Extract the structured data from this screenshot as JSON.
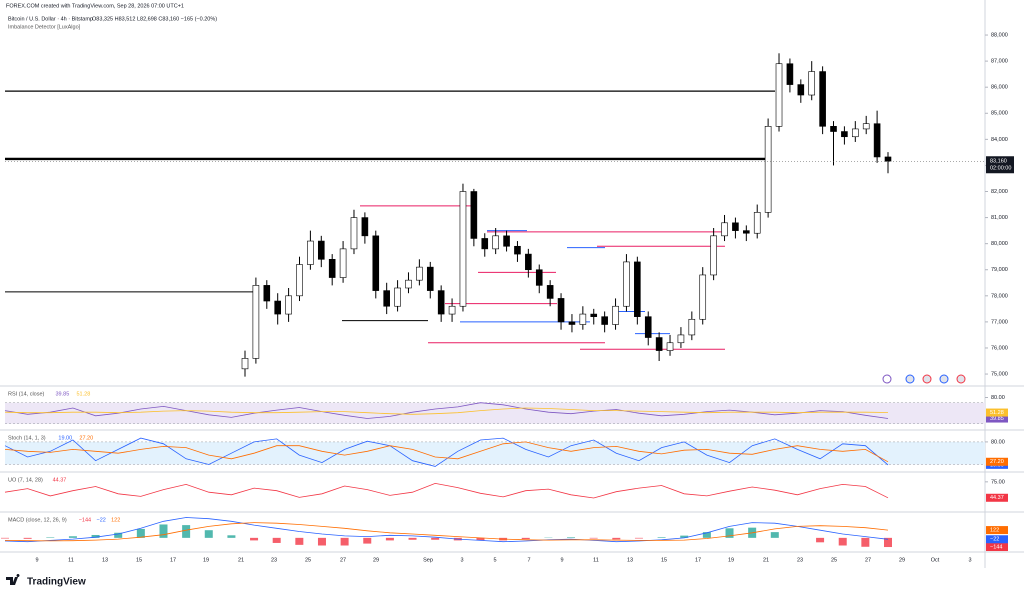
{
  "source": "FOREX.COM created with TradingView.com, Sep 28, 2026 07:00 UTC+1",
  "brand": "TradingView",
  "time_axis": {
    "labels": [
      "9",
      "11",
      "13",
      "15",
      "17",
      "19",
      "21",
      "23",
      "25",
      "27",
      "29",
      "Sep",
      "3",
      "5",
      "7",
      "9",
      "11",
      "13",
      "15",
      "17",
      "19",
      "21",
      "23",
      "25",
      "27",
      "29",
      "Oct",
      "3"
    ]
  },
  "chart_data": [
    {
      "type": "candlestick",
      "title": "Bitcoin / U.S. Dollar · 4h · Bitstamp",
      "ohlc_text": "O83,325 H83,512 L82,698 C83,160 −165 (−0.20%)",
      "subtitle": "Imbalance Detector [LuxAlgo]",
      "up_color": "#ffffff",
      "down_color": "#000000",
      "ylim": [
        74580,
        88270
      ],
      "yticks": [
        {
          "value": 75000,
          "label": "75,000"
        },
        {
          "value": 76000,
          "label": "76,000"
        },
        {
          "value": 77000,
          "label": "77,000"
        },
        {
          "value": 78000,
          "label": "78,000"
        },
        {
          "value": 79000,
          "label": "79,000"
        },
        {
          "value": 80000,
          "label": "80,000"
        },
        {
          "value": 81000,
          "label": "81,000"
        },
        {
          "value": 82000,
          "label": "82,000"
        },
        {
          "value": 83000,
          "label": "83,000"
        },
        {
          "value": 84000,
          "label": "84,000"
        },
        {
          "value": 85000,
          "label": "85,000"
        },
        {
          "value": 86000,
          "label": "86,000"
        },
        {
          "value": 87000,
          "label": "87,000"
        },
        {
          "value": 88000,
          "label": "88,000"
        }
      ],
      "last_price_label": "83,160",
      "countdown": "02:00:00",
      "levels": [
        {
          "value": 85850,
          "color": "#000000"
        },
        {
          "value": 83250,
          "color": "#000000"
        },
        {
          "value": 78150,
          "color": "#000000"
        },
        {
          "value": 77050,
          "color": "#000000"
        },
        {
          "value": 81450,
          "color": "#e91e63"
        },
        {
          "value": 80450,
          "color": "#e91e63"
        },
        {
          "value": 79900,
          "color": "#e91e63"
        },
        {
          "value": 78900,
          "color": "#e91e63"
        },
        {
          "value": 77700,
          "color": "#e91e63"
        },
        {
          "value": 76200,
          "color": "#e91e63"
        },
        {
          "value": 75950,
          "color": "#e91e63"
        },
        {
          "value": 80500,
          "color": "#2962ff"
        },
        {
          "value": 79850,
          "color": "#2962ff"
        },
        {
          "value": 77000,
          "color": "#2962ff"
        },
        {
          "value": 77400,
          "color": "#2962ff"
        },
        {
          "value": 76550,
          "color": "#2962ff"
        }
      ],
      "ohlc": [
        [
          75200,
          75900,
          74900,
          75600
        ],
        [
          75600,
          78700,
          75400,
          78400
        ],
        [
          78400,
          78600,
          77500,
          77800
        ],
        [
          77800,
          78100,
          76900,
          77300
        ],
        [
          77300,
          78300,
          77000,
          78000
        ],
        [
          78000,
          79500,
          77800,
          79200
        ],
        [
          79200,
          80500,
          79000,
          80100
        ],
        [
          80100,
          80300,
          79100,
          79400
        ],
        [
          79400,
          79600,
          78400,
          78700
        ],
        [
          78700,
          80100,
          78500,
          79800
        ],
        [
          79800,
          81300,
          79600,
          81000
        ],
        [
          81000,
          81200,
          80000,
          80300
        ],
        [
          80300,
          80500,
          77900,
          78200
        ],
        [
          78200,
          78500,
          77300,
          77600
        ],
        [
          77600,
          78600,
          77400,
          78300
        ],
        [
          78300,
          78900,
          78100,
          78600
        ],
        [
          78600,
          79400,
          78400,
          79100
        ],
        [
          79100,
          79300,
          77900,
          78200
        ],
        [
          78200,
          78400,
          77000,
          77300
        ],
        [
          77300,
          77900,
          77000,
          77600
        ],
        [
          77600,
          82300,
          77400,
          82000
        ],
        [
          82000,
          82100,
          79900,
          80200
        ],
        [
          80200,
          80400,
          79500,
          79800
        ],
        [
          79800,
          80600,
          79600,
          80300
        ],
        [
          80300,
          80500,
          79700,
          79900
        ],
        [
          79900,
          80100,
          79300,
          79600
        ],
        [
          79600,
          79800,
          78700,
          79000
        ],
        [
          79000,
          79200,
          78100,
          78400
        ],
        [
          78400,
          78600,
          77600,
          77900
        ],
        [
          77900,
          78100,
          76700,
          77000
        ],
        [
          77000,
          77300,
          76600,
          76900
        ],
        [
          76900,
          77600,
          76700,
          77300
        ],
        [
          77300,
          77500,
          76900,
          77200
        ],
        [
          77200,
          77400,
          76600,
          76900
        ],
        [
          76900,
          77900,
          76700,
          77600
        ],
        [
          77600,
          79600,
          77400,
          79300
        ],
        [
          79300,
          79500,
          76900,
          77200
        ],
        [
          77200,
          77400,
          76100,
          76400
        ],
        [
          76400,
          76600,
          75500,
          75900
        ],
        [
          75900,
          76500,
          75700,
          76200
        ],
        [
          76200,
          76800,
          76000,
          76500
        ],
        [
          76500,
          77400,
          76300,
          77100
        ],
        [
          77100,
          79100,
          76900,
          78800
        ],
        [
          78800,
          80600,
          78600,
          80300
        ],
        [
          80300,
          81100,
          80100,
          80800
        ],
        [
          80800,
          81000,
          80200,
          80500
        ],
        [
          80500,
          80700,
          80100,
          80400
        ],
        [
          80400,
          81500,
          80200,
          81200
        ],
        [
          81200,
          84800,
          81000,
          84500
        ],
        [
          84500,
          87300,
          84300,
          86900
        ],
        [
          86900,
          87100,
          85800,
          86100
        ],
        [
          86100,
          86300,
          85400,
          85700
        ],
        [
          85700,
          87000,
          85500,
          86600
        ],
        [
          86600,
          86800,
          84200,
          84500
        ],
        [
          84500,
          84700,
          83000,
          84300
        ],
        [
          84300,
          84500,
          83800,
          84100
        ],
        [
          84100,
          84700,
          83900,
          84400
        ],
        [
          84400,
          84900,
          84200,
          84600
        ],
        [
          84600,
          85100,
          83100,
          83325
        ],
        [
          83325,
          83512,
          82698,
          83160
        ]
      ]
    },
    {
      "type": "line",
      "title": "RSI (14, close)",
      "ylim": [
        18,
        100
      ],
      "yticks": [
        {
          "value": 80,
          "label": "80.00"
        }
      ],
      "band": [
        30,
        70
      ],
      "band_color": "#ede7f6",
      "series": [
        {
          "color": "#7e57c2",
          "last_label": "39.85",
          "values": [
            55,
            48,
            52,
            60,
            45,
            50,
            58,
            63,
            55,
            47,
            42,
            50,
            56,
            61,
            53,
            46,
            40,
            44,
            52,
            58,
            62,
            70,
            66,
            58,
            52,
            49,
            54,
            57,
            50,
            45,
            48,
            53,
            56,
            52,
            47,
            50,
            55,
            53,
            46,
            39.85
          ]
        },
        {
          "color": "#fbc02d",
          "last_label": "51.28",
          "values": [
            52,
            51,
            51,
            52,
            52,
            51,
            52,
            54,
            55,
            54,
            52,
            51,
            51,
            52,
            53,
            53,
            51,
            49,
            48,
            49,
            51,
            55,
            58,
            60,
            59,
            57,
            55,
            55,
            54,
            53,
            52,
            51,
            52,
            52,
            52,
            51,
            52,
            52,
            52,
            51.28
          ]
        }
      ]
    },
    {
      "type": "line",
      "title": "Stoch (14, 1, 3)",
      "ylim": [
        0,
        109
      ],
      "yticks": [
        {
          "value": 80,
          "label": "80.00"
        }
      ],
      "band": [
        20,
        80
      ],
      "band_color": "#e3f2fd",
      "series": [
        {
          "color": "#2962ff",
          "last_label": "19.00",
          "values": [
            70,
            40,
            55,
            85,
            30,
            60,
            90,
            75,
            35,
            20,
            50,
            80,
            88,
            45,
            25,
            60,
            82,
            70,
            30,
            15,
            55,
            85,
            90,
            60,
            40,
            70,
            85,
            50,
            30,
            65,
            80,
            45,
            25,
            70,
            88,
            60,
            35,
            75,
            70,
            19
          ]
        },
        {
          "color": "#ff6d00",
          "last_label": "27.20",
          "values": [
            60,
            55,
            52,
            60,
            55,
            50,
            60,
            68,
            65,
            45,
            35,
            50,
            70,
            70,
            55,
            45,
            55,
            70,
            60,
            40,
            35,
            55,
            75,
            80,
            65,
            55,
            65,
            68,
            55,
            48,
            58,
            60,
            50,
            47,
            60,
            70,
            60,
            55,
            60,
            27.2
          ]
        }
      ]
    },
    {
      "type": "line",
      "title": "UO (7, 14, 28)",
      "ylim": [
        17,
        92
      ],
      "yticks": [
        {
          "value": 75,
          "label": "75.00"
        }
      ],
      "series": [
        {
          "color": "#f23645",
          "last_label": "44.37",
          "values": [
            55,
            62,
            48,
            58,
            66,
            52,
            47,
            60,
            70,
            55,
            50,
            63,
            58,
            45,
            52,
            67,
            60,
            49,
            55,
            72,
            64,
            53,
            46,
            58,
            61,
            50,
            44,
            56,
            63,
            68,
            52,
            48,
            57,
            65,
            59,
            50,
            62,
            70,
            66,
            44.37
          ]
        }
      ]
    },
    {
      "type": "macd",
      "title": "MACD (close, 12, 26, 9)",
      "ylim": [
        -222,
        390
      ],
      "yticks": [],
      "histogram": {
        "color_up": "#26a69a",
        "color_down": "#f23645",
        "last_label": "−144",
        "values": [
          -10,
          -15,
          8,
          25,
          45,
          80,
          140,
          210,
          200,
          120,
          40,
          -40,
          -80,
          -110,
          -120,
          -120,
          -90,
          -40,
          -30,
          -30,
          -40,
          -40,
          -40,
          -20,
          5,
          10,
          -10,
          -25,
          -10,
          10,
          35,
          90,
          150,
          160,
          90,
          0,
          -70,
          -120,
          -140,
          -144
        ]
      },
      "series": [
        {
          "color": "#2962ff",
          "last_label": "−22",
          "values": [
            -50,
            -60,
            -40,
            -20,
            10,
            60,
            150,
            260,
            320,
            300,
            260,
            200,
            150,
            100,
            60,
            30,
            20,
            40,
            30,
            10,
            -20,
            -40,
            -60,
            -50,
            -30,
            -20,
            -40,
            -60,
            -50,
            -30,
            0,
            80,
            180,
            240,
            230,
            180,
            120,
            60,
            20,
            -22
          ]
        },
        {
          "color": "#ff6d00",
          "last_label": "122",
          "values": [
            -40,
            -45,
            -48,
            -45,
            -35,
            -20,
            10,
            50,
            120,
            180,
            220,
            240,
            230,
            210,
            180,
            150,
            110,
            80,
            60,
            40,
            20,
            0,
            -20,
            -30,
            -35,
            -30,
            -30,
            -35,
            -40,
            -40,
            -35,
            -10,
            30,
            80,
            140,
            180,
            190,
            180,
            160,
            122
          ]
        }
      ]
    }
  ]
}
